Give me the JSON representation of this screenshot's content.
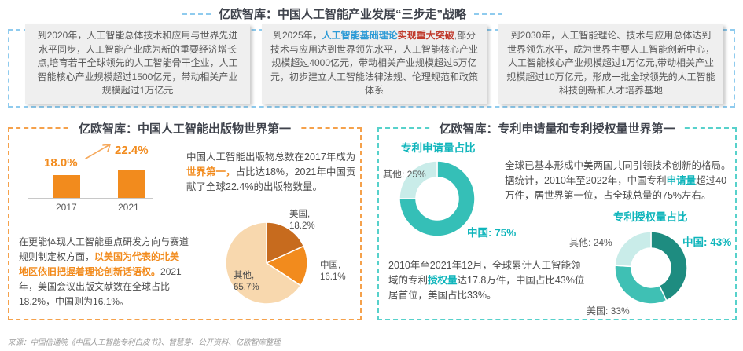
{
  "top_section": {
    "title": "亿欧智库：中国人工智能产业发展“三步走”战略",
    "boxes": [
      {
        "segments": [
          {
            "t": "到2020年，人工智能总体技术和应用与世界先进水平同步，人工智能产业成为新的重要经济增长点,培育若干全球领先的人工智能骨干企业，人工智能核心产业规模超过1500亿元，带动相关产业规模超过1万亿元"
          }
        ]
      },
      {
        "segments": [
          {
            "t": "到2025年，"
          },
          {
            "t": "人工智能基础理论",
            "c": "hl-blue"
          },
          {
            "t": "实现重大突破",
            "c": "hl-red"
          },
          {
            "t": ",部分技术与应用达到世界领先水平，人工智能核心产业规模超过4000亿元，带动相关产业规模超过5万亿元，初步建立人工智能法律法规、伦理规范和政策体系"
          }
        ]
      },
      {
        "segments": [
          {
            "t": "到2030年，人工智能理论、技术与应用总体达到世界领先水平，成为世界主要人工智能创新中心，人工智能核心产业规模超过1万亿元,带动相关产业规模超过10万亿元，形成一批全球领先的人工智能科技创新和人才培养基地"
          }
        ]
      }
    ]
  },
  "publications": {
    "title": "亿欧智库：中国人工智能出版物世界第一",
    "para1_segments": [
      {
        "t": "中国人工智能出版物总数在2017年成为"
      },
      {
        "t": "世界第一，",
        "c": "hl-orange"
      },
      {
        "t": "占比达18%，2021年中国贡献了全球22.4%的出版物数量。"
      }
    ],
    "para2_segments": [
      {
        "t": "在更能体现人工智能重点研发方向与赛道规则制定权方面，"
      },
      {
        "t": "以美国为代表的北美地区依旧把握着理论创新话语权。",
        "c": "hl-orange"
      },
      {
        "t": "2021年，美国会议出版文献数在全球占比18.2%，中国则为16.1%。"
      }
    ]
  },
  "patents": {
    "title": "亿欧智库：专利申请量和专利授权量世界第一",
    "para1_segments": [
      {
        "t": "全球已基本形成中美两国共同引领技术创新的格局。据统计，2010年至2022年，中国专利"
      },
      {
        "t": "申请量",
        "c": "hl-teal"
      },
      {
        "t": "超过40万件，居世界第一位，占全球总量的75%左右。"
      }
    ],
    "para2_segments": [
      {
        "t": "2010年至2021年12月，全球累计人工智能领域的专利"
      },
      {
        "t": "授权量",
        "c": "hl-teal"
      },
      {
        "t": "达17.8万件，中国占比43%位居首位，美国占比33%。"
      }
    ]
  },
  "chart_data": [
    {
      "id": "publications_bar",
      "type": "bar",
      "categories": [
        "2017",
        "2021"
      ],
      "values": [
        18.0,
        22.4
      ],
      "labels": [
        "18.0%",
        "22.4%"
      ],
      "unit": "%",
      "bar_color": "#F28B1D",
      "annotation": "growth-arrow"
    },
    {
      "id": "publications_pie",
      "type": "pie",
      "slices": [
        {
          "label": "美国",
          "value": 18.2,
          "color": "#C76B1E",
          "label_text": "美国,\n18.2%"
        },
        {
          "label": "中国",
          "value": 16.1,
          "color": "#F28B1D",
          "label_text": "中国,\n16.1%"
        },
        {
          "label": "其他",
          "value": 65.7,
          "color": "#F8D8AE",
          "label_text": "其他,\n65.7%"
        }
      ],
      "start_angle_deg": 0,
      "direction": "clockwise"
    },
    {
      "id": "patent_applications_donut",
      "type": "pie",
      "title": "专利申请量占比",
      "slices": [
        {
          "label": "中国",
          "value": 75,
          "color": "#35BFB7",
          "label_text": "中国: 75%"
        },
        {
          "label": "其他",
          "value": 25,
          "color": "#C9ECE9",
          "label_text": "其他: 25%"
        }
      ],
      "start_angle_deg": 0,
      "direction": "clockwise"
    },
    {
      "id": "patent_grants_donut",
      "type": "pie",
      "title": "专利授权量占比",
      "slices": [
        {
          "label": "中国",
          "value": 43,
          "color": "#1E8C80",
          "label_text": "中国: 43%"
        },
        {
          "label": "美国",
          "value": 33,
          "color": "#3FC0B4",
          "label_text": "美国: 33%"
        },
        {
          "label": "其他",
          "value": 24,
          "color": "#C9ECE9",
          "label_text": "其他: 24%"
        }
      ],
      "start_angle_deg": 0,
      "direction": "clockwise"
    }
  ],
  "colors": {
    "accent_orange": "#F28B1D",
    "accent_teal": "#0FB5BB",
    "highlight_blue": "#2E9BD6",
    "highlight_red": "#C0392B",
    "border_blue": "#8FCBEE",
    "border_orange": "#F5A14B",
    "border_teal": "#57D1CB",
    "title_dark": "#3F434C",
    "body_gray": "#4D4D4D"
  },
  "source_note": "来源：中国信通院《中国人工智能专利白皮书》、智慧芽、公开资料、亿欧智库整理"
}
